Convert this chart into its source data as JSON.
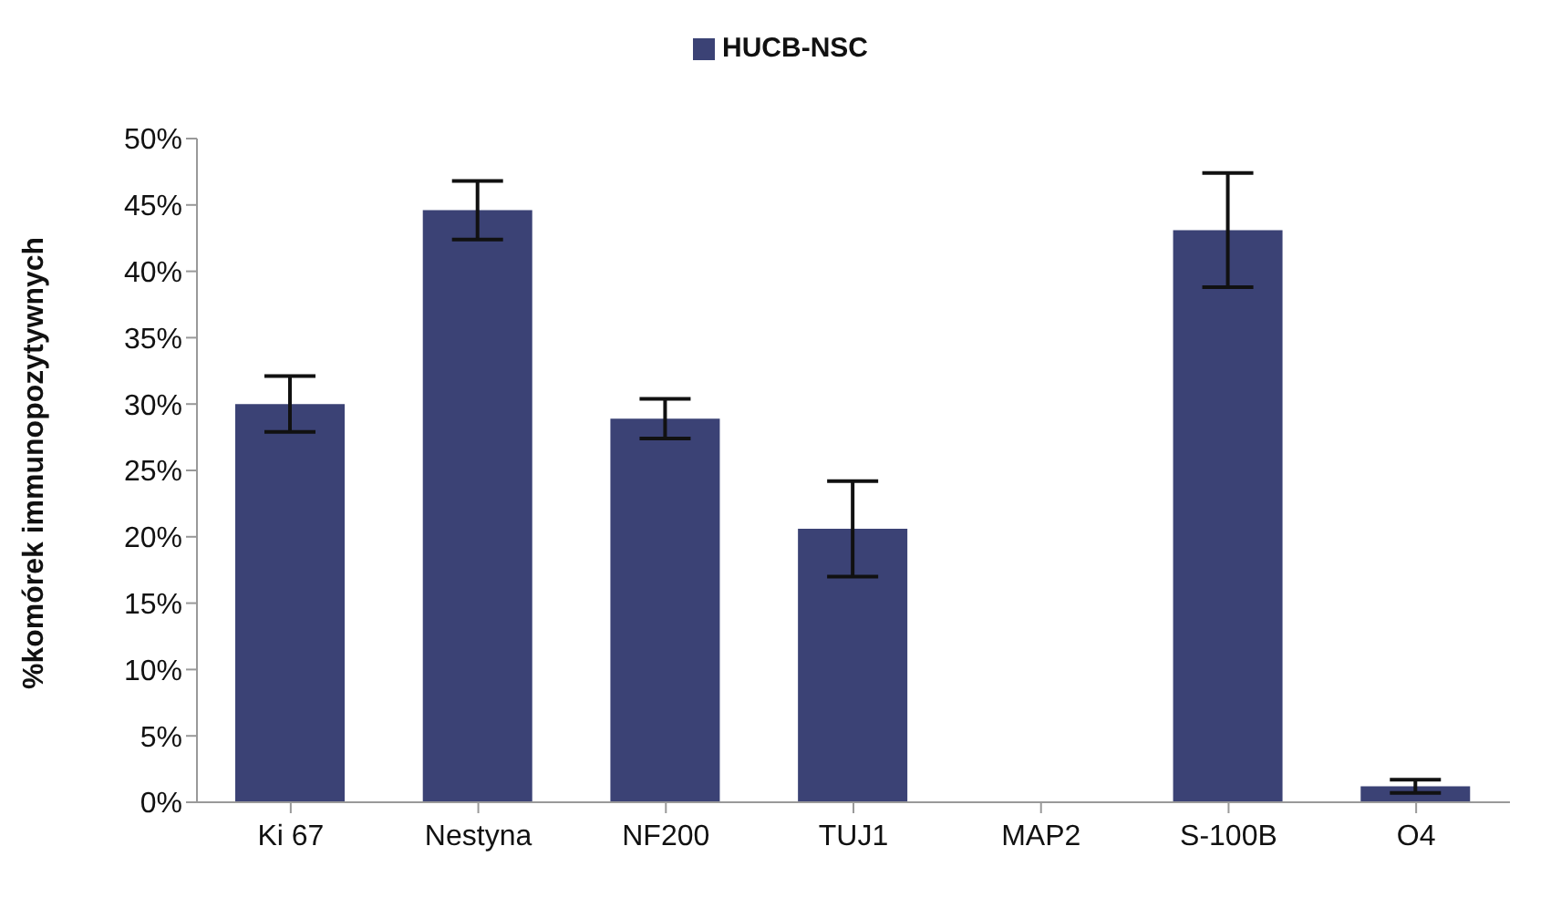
{
  "chart_data": {
    "type": "bar",
    "ylabel": "%komórek immunopozytywnych",
    "categories": [
      "Ki 67",
      "Nestyna",
      "NF200",
      "TUJ1",
      "MAP2",
      "S-100B",
      "O4"
    ],
    "series": [
      {
        "name": "HUCB-NSC",
        "color": "#3b4275",
        "values": [
          30,
          44.6,
          28.9,
          20.6,
          0,
          43.1,
          1.2
        ],
        "errors": [
          2.1,
          2.2,
          1.5,
          3.6,
          null,
          4.3,
          0.5
        ]
      }
    ],
    "ylim": [
      0,
      50
    ],
    "yticks": [
      {
        "value": 0,
        "label": "0%"
      },
      {
        "value": 5,
        "label": "5%"
      },
      {
        "value": 10,
        "label": "10%"
      },
      {
        "value": 15,
        "label": "15%"
      },
      {
        "value": 20,
        "label": "20%"
      },
      {
        "value": 25,
        "label": "25%"
      },
      {
        "value": 30,
        "label": "30%"
      },
      {
        "value": 35,
        "label": "35%"
      },
      {
        "value": 40,
        "label": "40%"
      },
      {
        "value": 45,
        "label": "45%"
      },
      {
        "value": 50,
        "label": "50%"
      }
    ],
    "grid": false,
    "legend": "top"
  }
}
